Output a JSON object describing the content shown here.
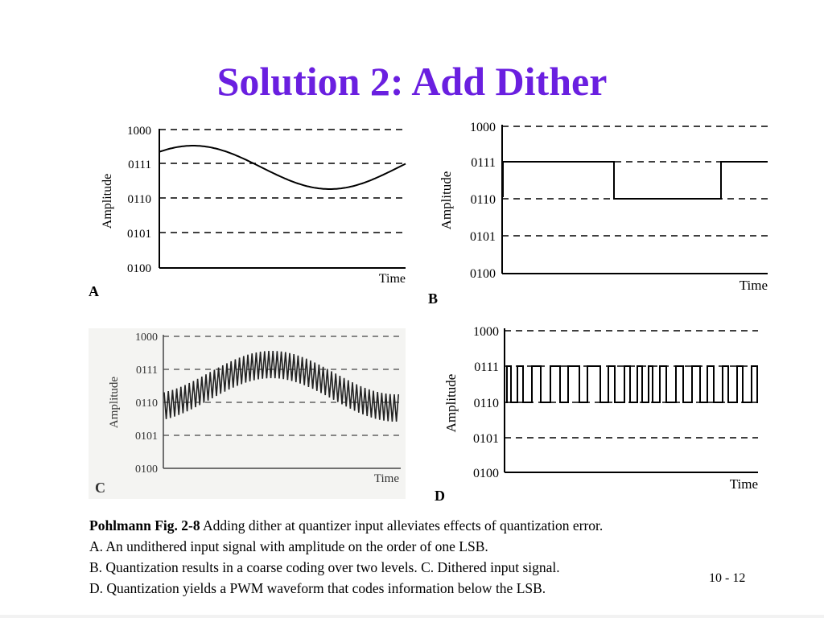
{
  "title": "Solution 2: Add Dither",
  "panels": {
    "a": {
      "letter": "A",
      "ylabel": "Amplitude",
      "xlabel": "Time",
      "levels": [
        "1000",
        "0111",
        "0110",
        "0101",
        "0100"
      ],
      "waveform": "sine"
    },
    "b": {
      "letter": "B",
      "ylabel": "Amplitude",
      "xlabel": "Time",
      "levels": [
        "1000",
        "0111",
        "0110",
        "0101",
        "0100"
      ],
      "waveform": "two-level-square"
    },
    "c": {
      "letter": "C",
      "ylabel": "Amplitude",
      "xlabel": "Time",
      "levels": [
        "1000",
        "0111",
        "0110",
        "0101",
        "0100"
      ],
      "waveform": "dithered-sine"
    },
    "d": {
      "letter": "D",
      "ylabel": "Amplitude",
      "xlabel": "Time",
      "levels": [
        "1000",
        "0111",
        "0110",
        "0101",
        "0100"
      ],
      "waveform": "pwm"
    }
  },
  "caption": {
    "source": "Pohlmann Fig. 2-8",
    "line1": " Adding dither at quantizer input alleviates effects of quantization error.",
    "line2": "A. An undithered input signal with amplitude on the order of one LSB.",
    "line3": "B. Quantization results in a coarse coding over two levels. C. Dithered input signal.",
    "line4": "D. Quantization yields a PWM waveform that codes information below the LSB."
  },
  "page_number": "10 - 12"
}
